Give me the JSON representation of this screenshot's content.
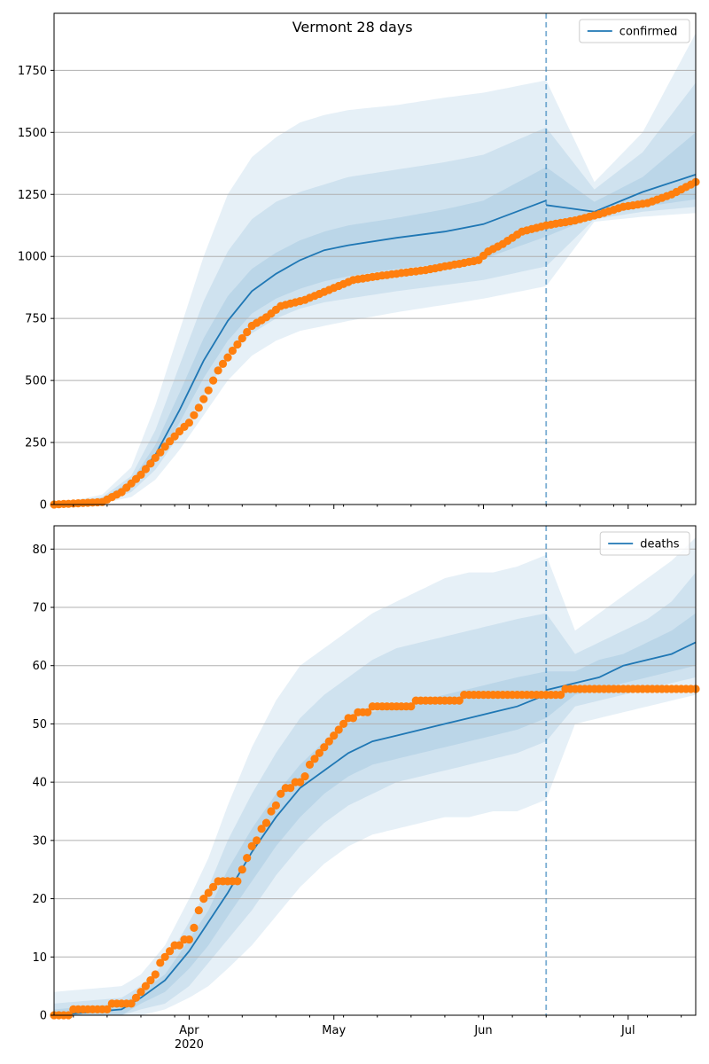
{
  "chart_data": [
    {
      "type": "line",
      "title": "Vermont 28 days",
      "xlabel": "",
      "ylabel": "",
      "x_range": [
        "2020-03-04",
        "2020-07-15"
      ],
      "x_ticks": [
        {
          "date": "2020-04-01",
          "label": "Apr",
          "sublabel": "2020"
        },
        {
          "date": "2020-05-01",
          "label": "May"
        },
        {
          "date": "2020-06-01",
          "label": "Jun"
        },
        {
          "date": "2020-07-01",
          "label": "Jul"
        }
      ],
      "ylim": [
        0,
        1980
      ],
      "y_ticks": [
        0,
        250,
        500,
        750,
        1000,
        1250,
        1500,
        1750
      ],
      "grid": "horizontal",
      "legend": "top-right",
      "forecast_start": "2020-06-14",
      "series": [
        {
          "name": "confirmed",
          "color": "#1f77b4",
          "x": [
            "2020-03-04",
            "2020-03-14",
            "2020-03-20",
            "2020-03-25",
            "2020-03-30",
            "2020-04-04",
            "2020-04-09",
            "2020-04-14",
            "2020-04-19",
            "2020-04-24",
            "2020-04-29",
            "2020-05-04",
            "2020-05-14",
            "2020-05-24",
            "2020-06-01",
            "2020-06-14",
            "2020-06-24",
            "2020-07-04",
            "2020-07-15"
          ],
          "y": [
            0,
            20,
            80,
            200,
            380,
            580,
            740,
            860,
            930,
            985,
            1025,
            1045,
            1075,
            1100,
            1130,
            1225,
            1180,
            1260,
            1330
          ],
          "bands": [
            {
              "lower": [
                0,
                5,
                30,
                100,
                220,
                360,
                500,
                600,
                660,
                700,
                720,
                740,
                775,
                805,
                830,
                880,
                1140,
                1160,
                1175
              ],
              "upper": [
                0,
                40,
                150,
                400,
                700,
                1000,
                1250,
                1400,
                1480,
                1540,
                1570,
                1590,
                1610,
                1640,
                1660,
                1710,
                1300,
                1500,
                1900
              ]
            },
            {
              "lower": [
                0,
                10,
                50,
                140,
                280,
                440,
                590,
                690,
                750,
                790,
                815,
                830,
                860,
                885,
                905,
                960,
                1150,
                1180,
                1200
              ],
              "upper": [
                0,
                30,
                115,
                300,
                560,
                820,
                1020,
                1150,
                1220,
                1260,
                1290,
                1320,
                1350,
                1380,
                1410,
                1520,
                1270,
                1420,
                1700
              ]
            },
            {
              "lower": [
                0,
                15,
                65,
                170,
                330,
                510,
                660,
                770,
                830,
                870,
                900,
                920,
                950,
                970,
                990,
                1080,
                1160,
                1200,
                1230
              ],
              "upper": [
                0,
                25,
                95,
                240,
                450,
                670,
                840,
                950,
                1015,
                1065,
                1100,
                1125,
                1155,
                1190,
                1225,
                1360,
                1220,
                1320,
                1500
              ]
            }
          ]
        }
      ],
      "observed": {
        "color": "#ff7f0e",
        "x": [
          "2020-03-04",
          "2020-03-14",
          "2020-03-18",
          "2020-03-22",
          "2020-03-26",
          "2020-03-28",
          "2020-03-30",
          "2020-04-01",
          "2020-04-03",
          "2020-04-05",
          "2020-04-07",
          "2020-04-10",
          "2020-04-14",
          "2020-04-17",
          "2020-04-20",
          "2020-04-25",
          "2020-04-30",
          "2020-05-05",
          "2020-05-10",
          "2020-05-20",
          "2020-05-31",
          "2020-06-02",
          "2020-06-05",
          "2020-06-09",
          "2020-06-14",
          "2020-06-20",
          "2020-06-25",
          "2020-06-30",
          "2020-07-05",
          "2020-07-10",
          "2020-07-15"
        ],
        "y": [
          0,
          10,
          50,
          120,
          210,
          255,
          295,
          330,
          390,
          460,
          540,
          620,
          720,
          755,
          800,
          825,
          865,
          905,
          920,
          945,
          985,
          1020,
          1050,
          1100,
          1125,
          1145,
          1170,
          1200,
          1215,
          1250,
          1300
        ]
      }
    },
    {
      "type": "line",
      "title": "",
      "xlabel": "",
      "ylabel": "",
      "x_range": [
        "2020-03-04",
        "2020-07-15"
      ],
      "x_ticks": [
        {
          "date": "2020-04-01",
          "label": "Apr",
          "sublabel": "2020"
        },
        {
          "date": "2020-05-01",
          "label": "May"
        },
        {
          "date": "2020-06-01",
          "label": "Jun"
        },
        {
          "date": "2020-07-01",
          "label": "Jul"
        }
      ],
      "ylim": [
        0,
        84
      ],
      "y_ticks": [
        0,
        10,
        20,
        30,
        40,
        50,
        60,
        70,
        80
      ],
      "grid": "horizontal",
      "legend": "top-right",
      "forecast_start": "2020-06-14",
      "series": [
        {
          "name": "deaths",
          "color": "#1f77b4",
          "x": [
            "2020-03-04",
            "2020-03-18",
            "2020-03-22",
            "2020-03-27",
            "2020-04-01",
            "2020-04-05",
            "2020-04-09",
            "2020-04-14",
            "2020-04-19",
            "2020-04-24",
            "2020-04-29",
            "2020-05-04",
            "2020-05-09",
            "2020-05-14",
            "2020-05-19",
            "2020-05-24",
            "2020-05-29",
            "2020-06-03",
            "2020-06-08",
            "2020-06-14",
            "2020-06-20",
            "2020-06-25",
            "2020-06-30",
            "2020-07-05",
            "2020-07-10",
            "2020-07-15"
          ],
          "y": [
            0,
            1,
            3,
            6,
            11,
            16,
            21,
            28,
            34,
            39,
            42,
            45,
            47,
            48,
            49,
            50,
            51,
            52,
            53,
            55,
            57,
            58,
            60,
            61,
            62,
            64
          ],
          "bands": [
            {
              "lower": [
                0,
                0,
                0,
                1,
                3,
                5,
                8,
                12,
                17,
                22,
                26,
                29,
                31,
                32,
                33,
                34,
                34,
                35,
                35,
                37,
                50,
                51,
                52,
                53,
                54,
                55
              ],
              "upper": [
                4,
                5,
                7,
                12,
                20,
                27,
                36,
                46,
                54,
                60,
                63,
                66,
                69,
                71,
                73,
                75,
                76,
                76,
                77,
                79,
                66,
                69,
                72,
                75,
                78,
                82
              ]
            },
            {
              "lower": [
                0,
                0,
                1,
                2,
                5,
                9,
                13,
                18,
                24,
                29,
                33,
                36,
                38,
                40,
                41,
                42,
                43,
                44,
                45,
                47,
                53,
                54,
                55,
                56,
                57,
                58
              ],
              "upper": [
                2,
                3,
                5,
                9,
                16,
                22,
                30,
                38,
                45,
                51,
                55,
                58,
                61,
                63,
                64,
                65,
                66,
                67,
                68,
                69,
                62,
                64,
                66,
                68,
                71,
                76
              ]
            },
            {
              "lower": [
                0,
                0,
                2,
                4,
                8,
                12,
                17,
                23,
                29,
                34,
                38,
                41,
                43,
                44,
                45,
                46,
                47,
                48,
                49,
                51,
                55,
                56,
                57,
                58,
                59,
                60
              ],
              "upper": [
                1,
                2,
                4,
                7,
                13,
                18,
                25,
                32,
                38,
                43,
                47,
                50,
                52,
                53,
                54,
                55,
                56,
                57,
                58,
                59,
                59,
                61,
                62,
                64,
                66,
                69
              ]
            }
          ]
        }
      ],
      "observed": {
        "color": "#ff7f0e",
        "x": [
          "2020-03-04",
          "2020-03-20",
          "2020-03-25",
          "2020-03-27",
          "2020-03-29",
          "2020-04-01",
          "2020-04-04",
          "2020-04-07",
          "2020-04-11",
          "2020-04-14",
          "2020-04-17",
          "2020-04-20",
          "2020-04-24",
          "2020-04-27",
          "2020-04-30",
          "2020-05-03",
          "2020-05-07",
          "2020-05-10",
          "2020-05-15",
          "2020-05-20",
          "2020-05-25",
          "2020-05-30",
          "2020-06-05",
          "2020-06-10",
          "2020-06-14",
          "2020-06-16",
          "2020-06-20",
          "2020-06-25",
          "2020-07-01",
          "2020-07-08",
          "2020-07-15"
        ],
        "y": [
          0,
          2,
          7,
          10,
          12,
          13,
          20,
          23,
          23,
          29,
          33,
          38,
          40,
          44,
          47,
          50,
          52,
          53,
          53,
          54,
          54,
          55,
          55,
          55,
          55,
          55,
          56,
          56,
          56,
          56,
          56
        ]
      }
    }
  ]
}
